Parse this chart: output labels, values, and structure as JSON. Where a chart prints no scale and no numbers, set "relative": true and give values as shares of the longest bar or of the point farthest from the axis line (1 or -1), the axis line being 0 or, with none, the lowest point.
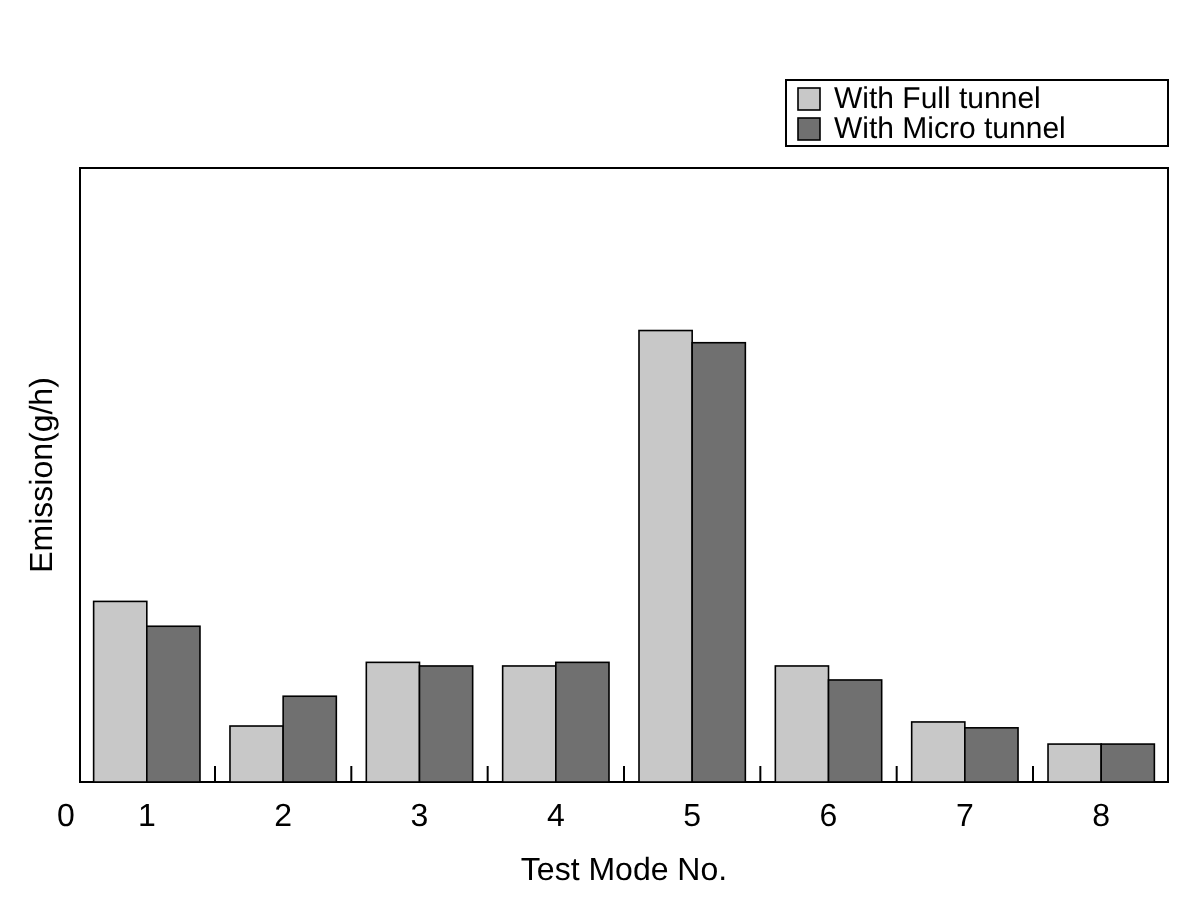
{
  "chart_data": {
    "type": "bar",
    "relative": true,
    "xlabel": "Test Mode No.",
    "ylabel": "Emission(g/h)",
    "categories": [
      "1",
      "2",
      "3",
      "4",
      "5",
      "6",
      "7",
      "8"
    ],
    "legend": "top right",
    "annotations": [
      "0"
    ],
    "series": [
      {
        "name": "With Full tunnel",
        "color": "#c8c8c8",
        "values": [
          0.4,
          0.124,
          0.265,
          0.257,
          1,
          0.257,
          0.133,
          0.084
        ]
      },
      {
        "name": "With Micro tunnel",
        "color": "#707070",
        "values": [
          0.345,
          0.19,
          0.257,
          0.265,
          0.973,
          0.226,
          0.12,
          0.084
        ]
      }
    ]
  }
}
